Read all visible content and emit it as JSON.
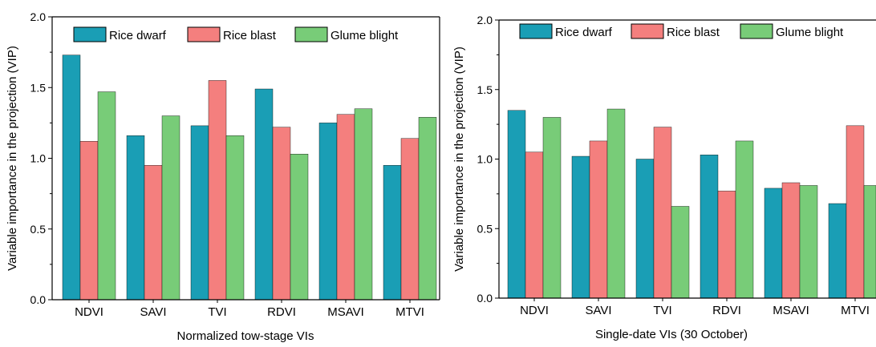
{
  "chart_data": [
    {
      "type": "bar",
      "categories": [
        "NDVI",
        "SAVI",
        "TVI",
        "RDVI",
        "MSAVI",
        "MTVI"
      ],
      "series": [
        {
          "name": "Rice dwarf",
          "values": [
            1.73,
            1.16,
            1.23,
            1.49,
            1.25,
            0.95
          ]
        },
        {
          "name": "Rice blast",
          "values": [
            1.12,
            0.95,
            1.55,
            1.22,
            1.31,
            1.14
          ]
        },
        {
          "name": "Glume blight",
          "values": [
            1.47,
            1.3,
            1.16,
            1.03,
            1.35,
            1.29
          ]
        }
      ],
      "xlabel": "Normalized tow-stage VIs",
      "ylabel": "Variable importance in the projection (VIP)",
      "ylim": [
        0,
        2.0
      ],
      "yticks": [
        "0.0",
        "0.5",
        "1.0",
        "1.5",
        "2.0"
      ],
      "legend": "top",
      "grid": false
    },
    {
      "type": "bar",
      "categories": [
        "NDVI",
        "SAVI",
        "TVI",
        "RDVI",
        "MSAVI",
        "MTVI"
      ],
      "series": [
        {
          "name": "Rice dwarf",
          "values": [
            1.35,
            1.02,
            1.0,
            1.03,
            0.79,
            0.68
          ]
        },
        {
          "name": "Rice blast",
          "values": [
            1.05,
            1.13,
            1.23,
            0.77,
            0.83,
            1.24
          ]
        },
        {
          "name": "Glume blight",
          "values": [
            1.3,
            1.36,
            0.66,
            1.13,
            0.81,
            0.81
          ]
        }
      ],
      "xlabel": "Single-date VIs (30 October)",
      "ylabel": "Variable importance in the projection (VIP)",
      "ylim": [
        0,
        2.0
      ],
      "yticks": [
        "0.0",
        "0.5",
        "1.0",
        "1.5",
        "2.0"
      ],
      "legend": "top",
      "grid": false
    }
  ],
  "colors": {
    "Rice dwarf": "#1a9eb5",
    "Rice blast": "#f47f7e",
    "Glume blight": "#78cc78"
  }
}
